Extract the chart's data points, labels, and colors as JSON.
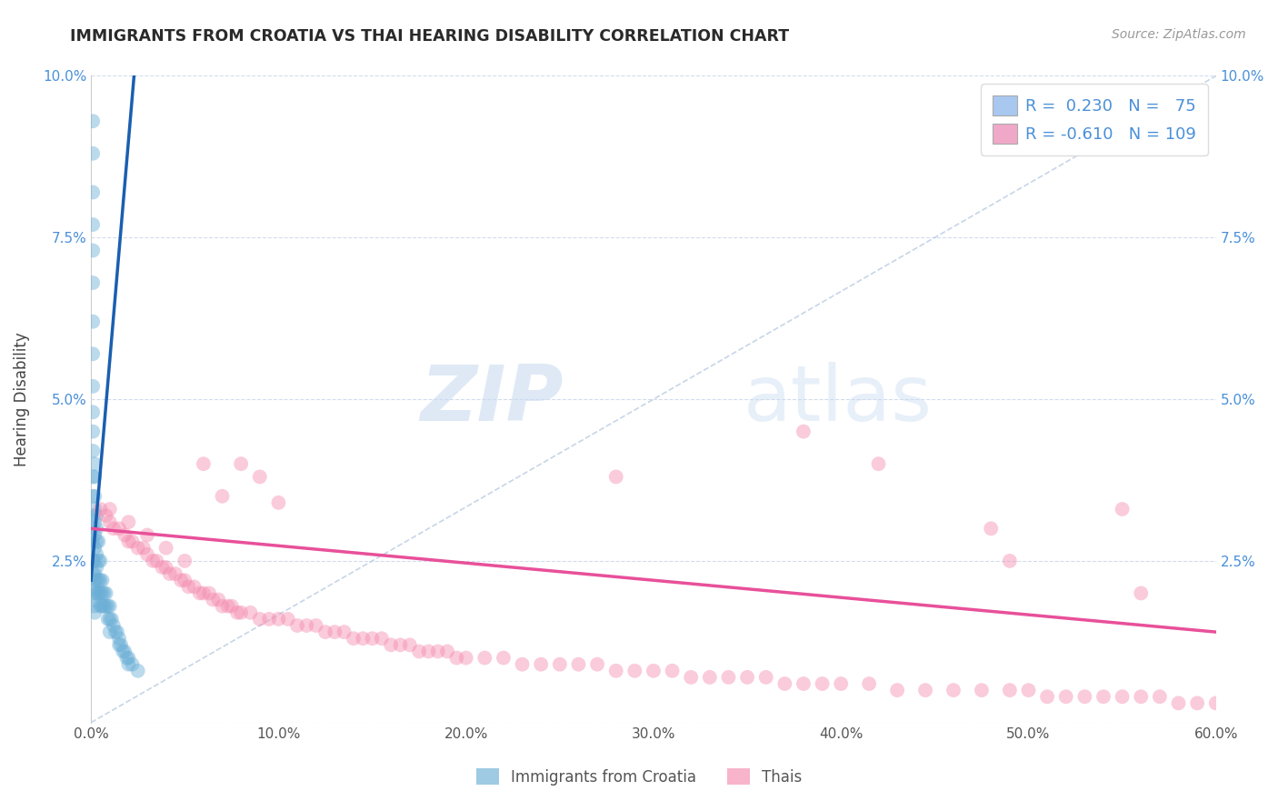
{
  "title": "IMMIGRANTS FROM CROATIA VS THAI HEARING DISABILITY CORRELATION CHART",
  "source": "Source: ZipAtlas.com",
  "ylabel": "Hearing Disability",
  "xlim": [
    0.0,
    0.6
  ],
  "ylim": [
    0.0,
    0.1
  ],
  "xticks": [
    0.0,
    0.1,
    0.2,
    0.3,
    0.4,
    0.5,
    0.6
  ],
  "xtick_labels": [
    "0.0%",
    "10.0%",
    "20.0%",
    "30.0%",
    "40.0%",
    "50.0%",
    "60.0%"
  ],
  "yticks": [
    0.0,
    0.025,
    0.05,
    0.075,
    0.1
  ],
  "ytick_labels": [
    "",
    "2.5%",
    "5.0%",
    "7.5%",
    "10.0%"
  ],
  "legend_r_labels": [
    "R =  0.230   N =   75",
    "R = -0.610   N = 109"
  ],
  "legend_colors": [
    "#a8c8f0",
    "#f0a8c8"
  ],
  "croatia_color": "#6aaed6",
  "thai_color": "#f48cb0",
  "croatia_line_color": "#1a5fb0",
  "thai_line_color": "#e8509a",
  "diagonal_line_color": "#b0c4de",
  "background_color": "#ffffff",
  "watermark_zip": "ZIP",
  "watermark_atlas": "atlas",
  "croatia_x": [
    0.001,
    0.001,
    0.001,
    0.001,
    0.001,
    0.001,
    0.001,
    0.001,
    0.001,
    0.001,
    0.001,
    0.001,
    0.001,
    0.001,
    0.001,
    0.001,
    0.001,
    0.001,
    0.001,
    0.001,
    0.002,
    0.002,
    0.002,
    0.002,
    0.002,
    0.002,
    0.002,
    0.002,
    0.002,
    0.002,
    0.002,
    0.002,
    0.002,
    0.002,
    0.003,
    0.003,
    0.003,
    0.003,
    0.003,
    0.003,
    0.003,
    0.004,
    0.004,
    0.004,
    0.004,
    0.005,
    0.005,
    0.005,
    0.005,
    0.006,
    0.006,
    0.006,
    0.007,
    0.007,
    0.008,
    0.008,
    0.009,
    0.009,
    0.01,
    0.01,
    0.01,
    0.011,
    0.012,
    0.013,
    0.014,
    0.015,
    0.015,
    0.016,
    0.017,
    0.018,
    0.019,
    0.02,
    0.02,
    0.022,
    0.025
  ],
  "croatia_y": [
    0.093,
    0.088,
    0.082,
    0.077,
    0.073,
    0.068,
    0.062,
    0.057,
    0.052,
    0.048,
    0.045,
    0.042,
    0.038,
    0.035,
    0.032,
    0.03,
    0.028,
    0.025,
    0.023,
    0.021,
    0.04,
    0.038,
    0.035,
    0.033,
    0.031,
    0.029,
    0.027,
    0.025,
    0.023,
    0.022,
    0.02,
    0.019,
    0.018,
    0.017,
    0.032,
    0.03,
    0.028,
    0.026,
    0.024,
    0.022,
    0.02,
    0.028,
    0.025,
    0.022,
    0.02,
    0.025,
    0.022,
    0.02,
    0.018,
    0.022,
    0.02,
    0.018,
    0.02,
    0.018,
    0.02,
    0.018,
    0.018,
    0.016,
    0.018,
    0.016,
    0.014,
    0.016,
    0.015,
    0.014,
    0.014,
    0.013,
    0.012,
    0.012,
    0.011,
    0.011,
    0.01,
    0.01,
    0.009,
    0.009,
    0.008
  ],
  "thai_x": [
    0.005,
    0.008,
    0.01,
    0.012,
    0.015,
    0.018,
    0.02,
    0.022,
    0.025,
    0.028,
    0.03,
    0.033,
    0.035,
    0.038,
    0.04,
    0.042,
    0.045,
    0.048,
    0.05,
    0.052,
    0.055,
    0.058,
    0.06,
    0.063,
    0.065,
    0.068,
    0.07,
    0.073,
    0.075,
    0.078,
    0.08,
    0.085,
    0.09,
    0.095,
    0.1,
    0.105,
    0.11,
    0.115,
    0.12,
    0.125,
    0.13,
    0.135,
    0.14,
    0.145,
    0.15,
    0.155,
    0.16,
    0.165,
    0.17,
    0.175,
    0.18,
    0.185,
    0.19,
    0.195,
    0.2,
    0.21,
    0.22,
    0.23,
    0.24,
    0.25,
    0.26,
    0.27,
    0.28,
    0.29,
    0.3,
    0.31,
    0.32,
    0.33,
    0.34,
    0.35,
    0.36,
    0.37,
    0.38,
    0.39,
    0.4,
    0.415,
    0.43,
    0.445,
    0.46,
    0.475,
    0.49,
    0.5,
    0.51,
    0.52,
    0.53,
    0.54,
    0.55,
    0.56,
    0.57,
    0.58,
    0.59,
    0.6,
    0.01,
    0.02,
    0.03,
    0.04,
    0.05,
    0.06,
    0.07,
    0.08,
    0.09,
    0.1,
    0.28,
    0.38,
    0.42,
    0.48,
    0.55,
    0.56,
    0.49
  ],
  "thai_y": [
    0.033,
    0.032,
    0.031,
    0.03,
    0.03,
    0.029,
    0.028,
    0.028,
    0.027,
    0.027,
    0.026,
    0.025,
    0.025,
    0.024,
    0.024,
    0.023,
    0.023,
    0.022,
    0.022,
    0.021,
    0.021,
    0.02,
    0.02,
    0.02,
    0.019,
    0.019,
    0.018,
    0.018,
    0.018,
    0.017,
    0.017,
    0.017,
    0.016,
    0.016,
    0.016,
    0.016,
    0.015,
    0.015,
    0.015,
    0.014,
    0.014,
    0.014,
    0.013,
    0.013,
    0.013,
    0.013,
    0.012,
    0.012,
    0.012,
    0.011,
    0.011,
    0.011,
    0.011,
    0.01,
    0.01,
    0.01,
    0.01,
    0.009,
    0.009,
    0.009,
    0.009,
    0.009,
    0.008,
    0.008,
    0.008,
    0.008,
    0.007,
    0.007,
    0.007,
    0.007,
    0.007,
    0.006,
    0.006,
    0.006,
    0.006,
    0.006,
    0.005,
    0.005,
    0.005,
    0.005,
    0.005,
    0.005,
    0.004,
    0.004,
    0.004,
    0.004,
    0.004,
    0.004,
    0.004,
    0.003,
    0.003,
    0.003,
    0.033,
    0.031,
    0.029,
    0.027,
    0.025,
    0.04,
    0.035,
    0.04,
    0.038,
    0.034,
    0.038,
    0.045,
    0.04,
    0.03,
    0.033,
    0.02,
    0.025
  ],
  "croatia_line_x0": 0.0,
  "croatia_line_y0": 0.022,
  "croatia_line_x1": 0.015,
  "croatia_line_y1": 0.073,
  "thai_line_x0": 0.0,
  "thai_line_y0": 0.03,
  "thai_line_x1": 0.6,
  "thai_line_y1": 0.014
}
